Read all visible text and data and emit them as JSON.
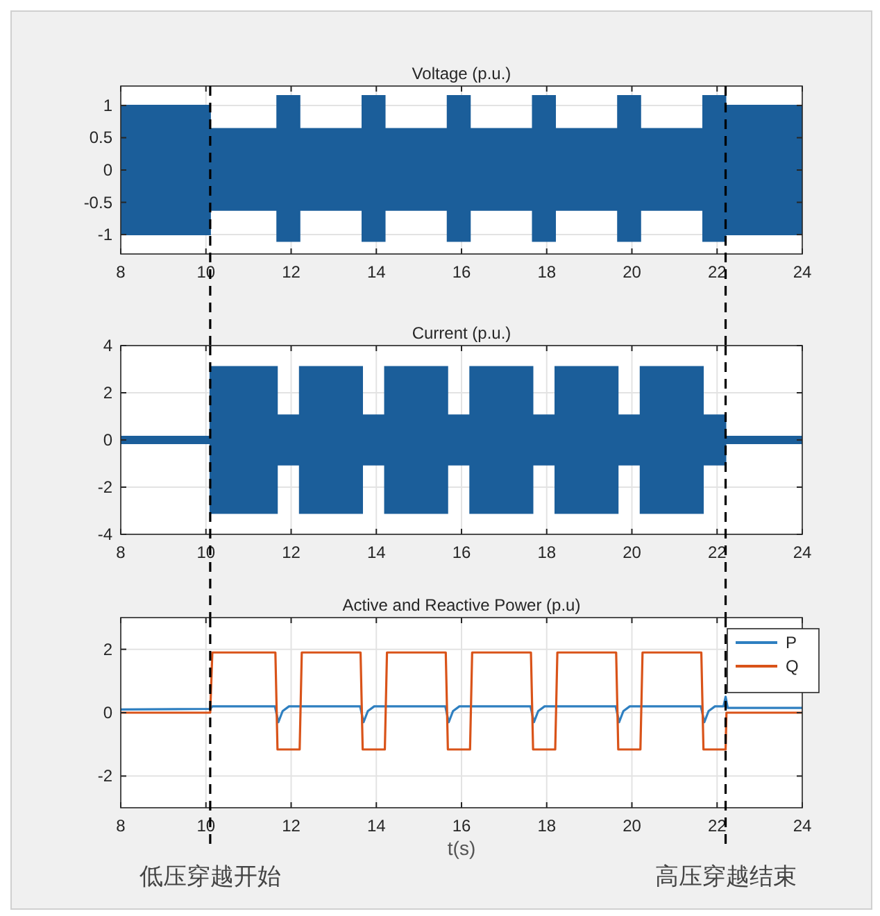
{
  "chart_data": [
    {
      "type": "area",
      "title": "Voltage (p.u.)",
      "xlim": [
        8,
        24
      ],
      "xticks": [
        8,
        10,
        12,
        14,
        16,
        18,
        20,
        22,
        24
      ],
      "ylim": [
        -1.3,
        1.3
      ],
      "yticks": [
        -1,
        -0.5,
        0,
        0.5,
        1
      ],
      "grid": true,
      "ref_lines": [
        {
          "axis": "x",
          "value": 10.1,
          "line_style": "dashed",
          "color": "#000000"
        },
        {
          "axis": "x",
          "value": 22.2,
          "line_style": "dashed",
          "color": "#000000"
        }
      ],
      "series": [
        {
          "color": "#1b5e9a",
          "x": [
            8,
            10.1,
            10.1,
            11.67,
            11.67,
            12.2,
            12.2,
            13.67,
            13.67,
            14.2,
            14.2,
            15.67,
            15.67,
            16.2,
            16.2,
            17.67,
            17.67,
            18.2,
            18.2,
            19.67,
            19.67,
            20.2,
            20.2,
            21.67,
            21.67,
            22.2,
            22.2,
            24
          ],
          "values": [
            1,
            1,
            0.64,
            0.64,
            1.15,
            1.15,
            0.64,
            0.64,
            1.15,
            1.15,
            0.64,
            0.64,
            1.15,
            1.15,
            0.64,
            0.64,
            1.15,
            1.15,
            0.64,
            0.64,
            1.15,
            1.15,
            0.64,
            0.64,
            1.15,
            1.15,
            1,
            1
          ]
        },
        {
          "color": "#1b5e9a",
          "x": [
            8,
            10.1,
            10.1,
            11.67,
            11.67,
            12.2,
            12.2,
            13.67,
            13.67,
            14.2,
            14.2,
            15.67,
            15.67,
            16.2,
            16.2,
            17.67,
            17.67,
            18.2,
            18.2,
            19.67,
            19.67,
            20.2,
            20.2,
            21.67,
            21.67,
            22.2,
            22.2,
            24
          ],
          "values": [
            -1,
            -1,
            -0.62,
            -0.62,
            -1.1,
            -1.1,
            -0.62,
            -0.62,
            -1.1,
            -1.1,
            -0.62,
            -0.62,
            -1.1,
            -1.1,
            -0.62,
            -0.62,
            -1.1,
            -1.1,
            -0.62,
            -0.62,
            -1.1,
            -1.1,
            -0.62,
            -0.62,
            -1.1,
            -1.1,
            -1,
            -1
          ]
        }
      ]
    },
    {
      "type": "area",
      "title": "Current (p.u.)",
      "xlim": [
        8,
        24
      ],
      "xticks": [
        8,
        10,
        12,
        14,
        16,
        18,
        20,
        22,
        24
      ],
      "ylim": [
        -4,
        4
      ],
      "yticks": [
        -4,
        -2,
        0,
        2,
        4
      ],
      "grid": true,
      "ref_lines": [
        {
          "axis": "x",
          "value": 10.1,
          "line_style": "dashed",
          "color": "#000000"
        },
        {
          "axis": "x",
          "value": 22.2,
          "line_style": "dashed",
          "color": "#000000"
        }
      ],
      "series": [
        {
          "color": "#1b5e9a",
          "x": [
            8,
            10.1,
            10.1,
            11.67,
            11.67,
            12.2,
            12.2,
            13.67,
            13.67,
            14.2,
            14.2,
            15.67,
            15.67,
            16.2,
            16.2,
            17.67,
            17.67,
            18.2,
            18.2,
            19.67,
            19.67,
            20.2,
            20.2,
            21.67,
            21.67,
            22.2,
            22.2,
            24
          ],
          "values": [
            0.15,
            0.15,
            3.1,
            3.1,
            1.05,
            1.05,
            3.1,
            3.1,
            1.05,
            1.05,
            3.1,
            3.1,
            1.05,
            1.05,
            3.1,
            3.1,
            1.05,
            1.05,
            3.1,
            3.1,
            1.05,
            1.05,
            3.1,
            3.1,
            1.05,
            1.05,
            0.15,
            0.15
          ]
        },
        {
          "color": "#1b5e9a",
          "x": [
            8,
            10.1,
            10.1,
            11.67,
            11.67,
            12.2,
            12.2,
            13.67,
            13.67,
            14.2,
            14.2,
            15.67,
            15.67,
            16.2,
            16.2,
            17.67,
            17.67,
            18.2,
            18.2,
            19.67,
            19.67,
            20.2,
            20.2,
            21.67,
            21.67,
            22.2,
            22.2,
            24
          ],
          "values": [
            -0.15,
            -0.15,
            -3.1,
            -3.1,
            -1.05,
            -1.05,
            -3.1,
            -3.1,
            -1.05,
            -1.05,
            -3.1,
            -3.1,
            -1.05,
            -1.05,
            -3.1,
            -3.1,
            -1.05,
            -1.05,
            -3.1,
            -3.1,
            -1.05,
            -1.05,
            -3.1,
            -3.1,
            -1.05,
            -1.05,
            -0.15,
            -0.15
          ]
        }
      ]
    },
    {
      "type": "line",
      "title": "Active and Reactive Power (p.u)",
      "xlabel": "t(s)",
      "xlim": [
        8,
        24
      ],
      "xticks": [
        8,
        10,
        12,
        14,
        16,
        18,
        20,
        22,
        24
      ],
      "ylim": [
        -3,
        3
      ],
      "yticks": [
        -2,
        0,
        2
      ],
      "grid": true,
      "legend": "top right",
      "ref_lines": [
        {
          "axis": "x",
          "value": 10.1,
          "line_style": "dashed",
          "color": "#000000",
          "label": "低压穿越开始"
        },
        {
          "axis": "x",
          "value": 22.2,
          "line_style": "dashed",
          "color": "#000000",
          "label": "高压穿越结束"
        }
      ],
      "series": [
        {
          "name": "P",
          "color": "#2e7fc0",
          "x": [
            8,
            10.1,
            10.15,
            11.62,
            11.7,
            11.8,
            11.95,
            13.62,
            13.7,
            13.8,
            13.95,
            15.62,
            15.7,
            15.8,
            15.95,
            17.62,
            17.7,
            17.8,
            17.95,
            19.62,
            19.7,
            19.8,
            19.95,
            21.62,
            21.7,
            21.8,
            21.95,
            22.15,
            22.2,
            22.25,
            24
          ],
          "values": [
            0.1,
            0.12,
            0.2,
            0.2,
            -0.3,
            0.05,
            0.2,
            0.2,
            -0.3,
            0.05,
            0.2,
            0.2,
            -0.3,
            0.05,
            0.2,
            0.2,
            -0.3,
            0.05,
            0.2,
            0.2,
            -0.3,
            0.05,
            0.2,
            0.2,
            -0.3,
            0.05,
            0.2,
            0.2,
            0.5,
            0.15,
            0.15
          ]
        },
        {
          "name": "Q",
          "color": "#d95319",
          "x": [
            8,
            10.1,
            10.15,
            11.63,
            11.68,
            12.2,
            12.25,
            13.63,
            13.68,
            14.2,
            14.25,
            15.63,
            15.68,
            16.2,
            16.25,
            17.63,
            17.68,
            18.2,
            18.25,
            19.63,
            19.68,
            20.2,
            20.25,
            21.63,
            21.68,
            22.2,
            22.22,
            24
          ],
          "values": [
            0,
            0,
            1.9,
            1.9,
            -1.16,
            -1.16,
            1.9,
            1.9,
            -1.16,
            -1.16,
            1.9,
            1.9,
            -1.16,
            -1.16,
            1.9,
            1.9,
            -1.16,
            -1.16,
            1.9,
            1.9,
            -1.16,
            -1.16,
            1.9,
            1.9,
            -1.16,
            -1.16,
            0,
            0
          ]
        }
      ]
    }
  ]
}
